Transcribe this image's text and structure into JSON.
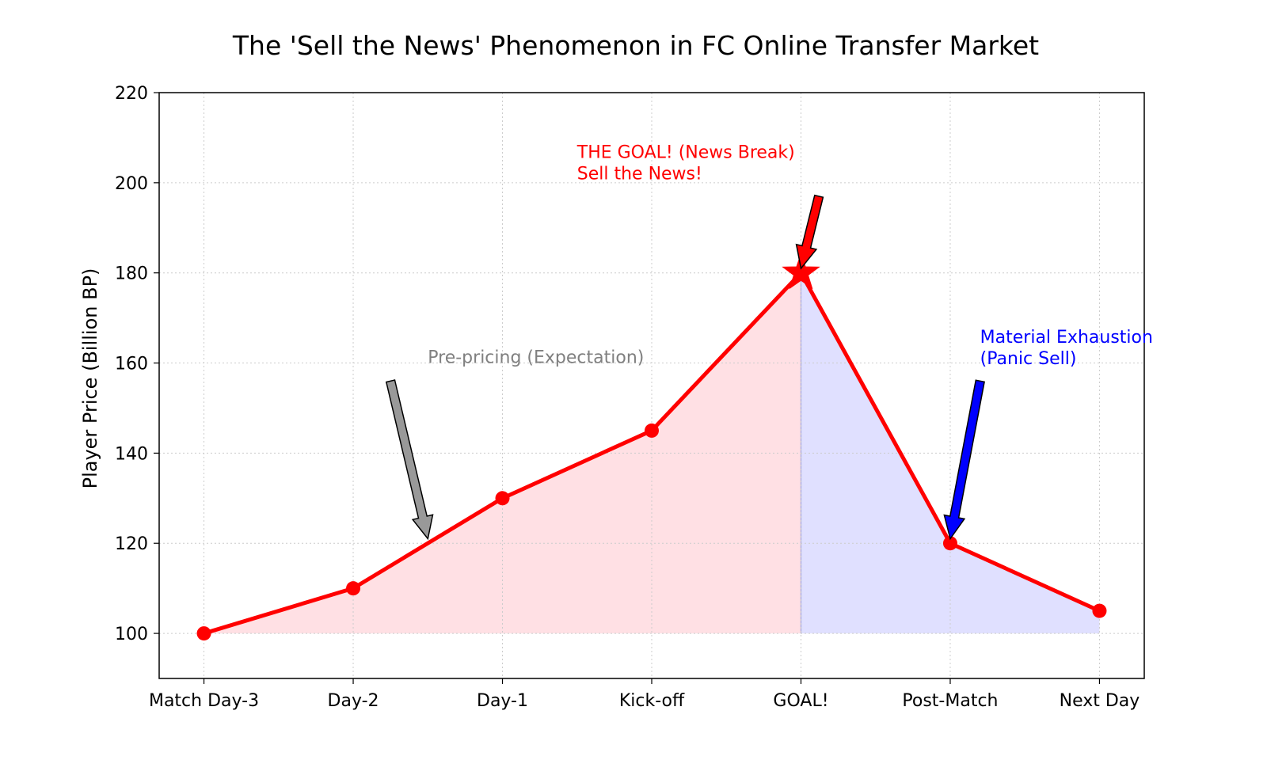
{
  "chart_data": {
    "type": "line",
    "title": "The 'Sell the News' Phenomenon in FC Online Transfer Market",
    "xlabel": "",
    "ylabel": "Player Price (Billion BP)",
    "ylim": [
      90,
      220
    ],
    "yticks": [
      100,
      120,
      140,
      160,
      180,
      200,
      220
    ],
    "grid": true,
    "categories": [
      "Match Day-3",
      "Day-2",
      "Day-1",
      "Kick-off",
      "GOAL!",
      "Post-Match",
      "Next Day"
    ],
    "series": [
      {
        "values": [
          100,
          110,
          130,
          145,
          180,
          120,
          105
        ],
        "color": "#ff0000",
        "markers": [
          "circle",
          "circle",
          "circle",
          "circle",
          "star",
          "circle",
          "circle"
        ]
      }
    ],
    "fill_regions": [
      {
        "from": 0,
        "to": 4,
        "baseline": 100,
        "color": "#ffe0e4"
      },
      {
        "from": 4,
        "to": 6,
        "baseline": 100,
        "color": "#e0e0ff"
      }
    ],
    "annotations": [
      {
        "lines": [
          "Pre-pricing (Expectation)"
        ],
        "color": "#808080",
        "arrow_color": "#999999",
        "text_anchor": [
          1.5,
          160
        ],
        "target": [
          1.5,
          121
        ],
        "tail": [
          1.25,
          156
        ]
      },
      {
        "lines": [
          "THE GOAL! (News Break)",
          "Sell the News!"
        ],
        "color": "#ff0000",
        "arrow_color": "#ff0000",
        "text_anchor": [
          2.5,
          205.5
        ],
        "target": [
          4.0,
          181
        ],
        "tail": [
          4.12,
          197
        ]
      },
      {
        "lines": [
          "Material Exhaustion",
          "(Panic Sell)"
        ],
        "color": "#0000ff",
        "arrow_color": "#0000ff",
        "text_anchor": [
          5.2,
          164.5
        ],
        "target": [
          5.0,
          121
        ],
        "tail": [
          5.2,
          156
        ]
      }
    ]
  }
}
